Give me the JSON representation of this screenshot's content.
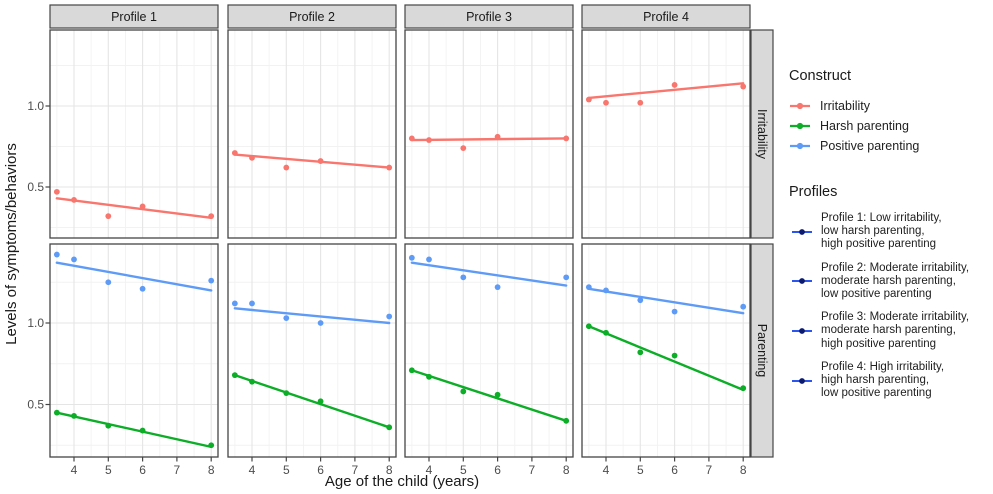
{
  "axes": {
    "y_title": "Levels of symptoms/behaviors",
    "x_title": "Age of the child (years)",
    "y_tick_labels": [
      "1.0",
      "0.5"
    ],
    "x_tick_labels": [
      "4",
      "5",
      "6",
      "7",
      "8"
    ]
  },
  "colors": {
    "irritability": "#F8766D",
    "harsh_parenting": "#0CAD27",
    "positive_parenting": "#5E9BF7",
    "profile_key_line": "#2B55EE",
    "profile_key_point": "#0C1B6E",
    "strip_fill": "#D9D9D9",
    "panel_border": "#454545",
    "grid_major": "#E5E5E5",
    "grid_minor": "#F2F2F2",
    "tick_text": "#4D4D4D",
    "title_text": "#1A1A1A",
    "point_and_line_note": ""
  },
  "chart_data": {
    "type": "scatter",
    "facet_columns": [
      "Profile 1",
      "Profile 2",
      "Profile 3",
      "Profile 4"
    ],
    "facet_rows": [
      "Irritability",
      "Parenting"
    ],
    "x_values": [
      3.5,
      4,
      5,
      6,
      8
    ],
    "x_ticks": [
      4,
      5,
      6,
      7,
      8
    ],
    "x_range": [
      3.3,
      8.2
    ],
    "y_ticks": [
      0.5,
      1.0
    ],
    "y_range": [
      0.18,
      1.48
    ],
    "trend_x": [
      3.5,
      8
    ],
    "xlabel": "Age of the child (years)",
    "ylabel": "Levels of symptoms/behaviors",
    "legend_position": "right",
    "grid": "major+minor",
    "panels": [
      {
        "row": 0,
        "col": 0,
        "series": [
          {
            "construct": "Irritability",
            "color_key": "irritability",
            "points": [
              0.47,
              0.42,
              0.32,
              0.38,
              0.32
            ],
            "trend": [
              0.43,
              0.31
            ]
          }
        ]
      },
      {
        "row": 0,
        "col": 1,
        "series": [
          {
            "construct": "Irritability",
            "color_key": "irritability",
            "points": [
              0.71,
              0.68,
              0.62,
              0.66,
              0.62
            ],
            "trend": [
              0.7,
              0.62
            ]
          }
        ]
      },
      {
        "row": 0,
        "col": 2,
        "series": [
          {
            "construct": "Irritability",
            "color_key": "irritability",
            "points": [
              0.8,
              0.79,
              0.74,
              0.81,
              0.8
            ],
            "trend": [
              0.79,
              0.8
            ]
          }
        ]
      },
      {
        "row": 0,
        "col": 3,
        "series": [
          {
            "construct": "Irritability",
            "color_key": "irritability",
            "points": [
              1.04,
              1.02,
              1.02,
              1.13,
              1.12
            ],
            "trend": [
              1.05,
              1.14
            ]
          }
        ]
      },
      {
        "row": 1,
        "col": 0,
        "series": [
          {
            "construct": "Positive parenting",
            "color_key": "positive_parenting",
            "points": [
              1.42,
              1.39,
              1.25,
              1.21,
              1.26
            ],
            "trend": [
              1.37,
              1.2
            ]
          },
          {
            "construct": "Harsh parenting",
            "color_key": "harsh_parenting",
            "points": [
              0.45,
              0.43,
              0.37,
              0.34,
              0.25
            ],
            "trend": [
              0.45,
              0.24
            ]
          }
        ]
      },
      {
        "row": 1,
        "col": 1,
        "series": [
          {
            "construct": "Positive parenting",
            "color_key": "positive_parenting",
            "points": [
              1.12,
              1.12,
              1.03,
              1.0,
              1.04
            ],
            "trend": [
              1.09,
              1.0
            ]
          },
          {
            "construct": "Harsh parenting",
            "color_key": "harsh_parenting",
            "points": [
              0.68,
              0.64,
              0.57,
              0.52,
              0.36
            ],
            "trend": [
              0.68,
              0.36
            ]
          }
        ]
      },
      {
        "row": 1,
        "col": 2,
        "series": [
          {
            "construct": "Positive parenting",
            "color_key": "positive_parenting",
            "points": [
              1.4,
              1.39,
              1.28,
              1.22,
              1.28
            ],
            "trend": [
              1.37,
              1.23
            ]
          },
          {
            "construct": "Harsh parenting",
            "color_key": "harsh_parenting",
            "points": [
              0.71,
              0.67,
              0.58,
              0.56,
              0.4
            ],
            "trend": [
              0.71,
              0.4
            ]
          }
        ]
      },
      {
        "row": 1,
        "col": 3,
        "series": [
          {
            "construct": "Positive parenting",
            "color_key": "positive_parenting",
            "points": [
              1.22,
              1.2,
              1.14,
              1.07,
              1.1
            ],
            "trend": [
              1.21,
              1.06
            ]
          },
          {
            "construct": "Harsh parenting",
            "color_key": "harsh_parenting",
            "points": [
              0.98,
              0.94,
              0.82,
              0.8,
              0.6
            ],
            "trend": [
              0.98,
              0.59
            ]
          }
        ]
      }
    ]
  },
  "legend": {
    "construct": {
      "title": "Construct",
      "items": [
        {
          "label": "Irritability",
          "color_key": "irritability"
        },
        {
          "label": "Harsh parenting",
          "color_key": "harsh_parenting"
        },
        {
          "label": "Positive parenting",
          "color_key": "positive_parenting"
        }
      ]
    },
    "profiles": {
      "title": "Profiles",
      "items": [
        {
          "label": "Profile 1: Low irritability,\nlow harsh parenting,\nhigh positive parenting"
        },
        {
          "label": "Profile 2: Moderate irritability,\nmoderate harsh parenting,\nlow positive parenting"
        },
        {
          "label": "Profile 3: Moderate irritability,\nmoderate harsh parenting,\nhigh positive parenting"
        },
        {
          "label": "Profile 4: High irritability,\nhigh harsh parenting,\nlow positive parenting"
        }
      ]
    }
  }
}
